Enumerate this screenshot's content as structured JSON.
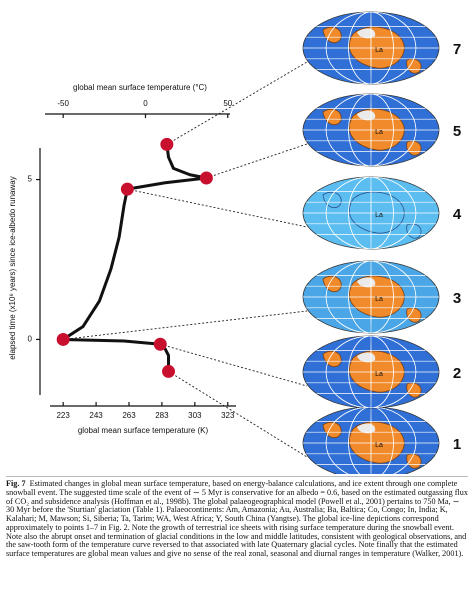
{
  "chart_data": {
    "type": "line",
    "xlabel": "global mean surface temperature (K)",
    "x2label": "global mean surface temperature (°C)",
    "ylabel": "elapsed time (x10⁶ years) since ice-albedo runaway",
    "xlim": [
      215,
      328
    ],
    "xticks": [
      223,
      243,
      263,
      283,
      303,
      323
    ],
    "x2lim": [
      -58,
      55
    ],
    "x2ticks": [
      -50,
      0,
      50
    ],
    "ylim": [
      -1.8,
      6.3
    ],
    "yticks": [
      0,
      5
    ],
    "series": [
      {
        "color": "#111111",
        "x": [
          287,
          287,
          285,
          282,
          260,
          223,
          235,
          245,
          252,
          257,
          260,
          262,
          285,
          310,
          300,
          290,
          287,
          286
        ],
        "values": [
          -1,
          -0.5,
          -0.3,
          -0.15,
          -0.05,
          0,
          0.4,
          1.2,
          2.2,
          3.2,
          4.2,
          4.7,
          4.9,
          5.05,
          5.15,
          5.35,
          5.7,
          6.1
        ]
      },
      {
        "color": "#c8102e",
        "x": [
          287,
          282,
          223,
          262,
          310,
          286
        ],
        "values": [
          -1,
          -0.15,
          0,
          4.7,
          5.05,
          6.1
        ]
      }
    ],
    "panels": [
      {
        "label": "1",
        "text": "La",
        "ocean": "#2f6fd6",
        "land": "#f08a2a"
      },
      {
        "label": "2",
        "text": "La",
        "ocean": "#2f6fd6",
        "land": "#f08a2a"
      },
      {
        "label": "3",
        "text": "La",
        "ocean": "#4aa6e6",
        "land": "#f08a2a"
      },
      {
        "label": "4",
        "text": "La",
        "ocean": "#5cbdf0",
        "land": "#5cbdf0"
      },
      {
        "label": "5",
        "text": "La",
        "ocean": "#2f6fd6",
        "land": "#f08a2a"
      },
      {
        "label": "7",
        "text": "La",
        "ocean": "#2f6fd6",
        "land": "#f08a2a"
      }
    ]
  },
  "caption": {
    "label": "Fig. 7",
    "text": "Estimated changes in global mean surface temperature, based on energy-balance calculations, and ice extent through one complete snowball event. The suggested time scale of the event of ∼ 5 Myr is conservative for an albedo = 0.6, based on the estimated outgassing flux of CO₂ and subsidence analysis (Hoffman et al., 1998b). The global palaeogeographical model (Powell et al., 2001) pertains to 750 Ma, ∼ 30 Myr before the 'Sturtian' glaciation (Table 1). Palaeocontinents: Am, Amazonia; Au, Australia; Ba, Baltica; Co, Congo; In, India; K, Kalahari; M, Mawson; Si, Siberia; Ta, Tarim; WA, West Africa; Y, South China (Yangtse). The global ice-line depictions correspond approximately to points 1–7 in Fig. 2. Note the growth of terrestrial ice sheets with rising surface temperature during the snowball event. Note also the abrupt onset and termination of glacial conditions in the low and middle latitudes, consistent with geological observations, and the saw-tooth form of the temperature curve reversed to that associated with late Quaternary glacial cycles. Note finally that the estimated surface temperatures are global mean values and give no sense of the real zonal, seasonal and diurnal ranges in temperature (Walker, 2001)."
  }
}
